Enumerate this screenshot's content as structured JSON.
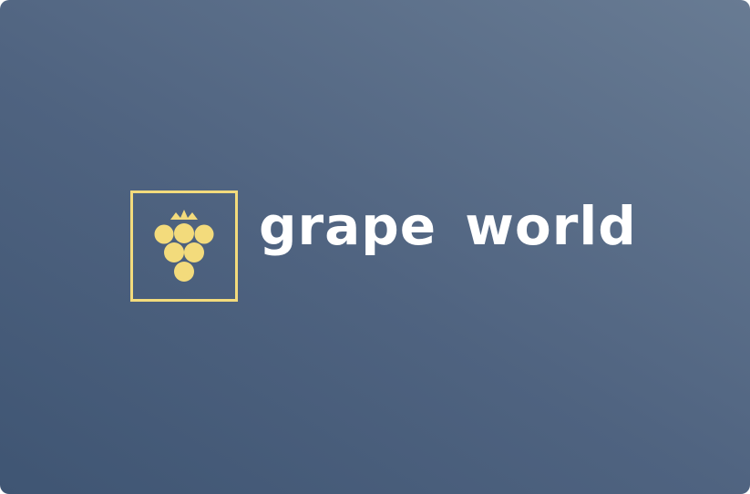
{
  "logo": {
    "icon": "grape-bunch-icon",
    "wordmark": "grape world",
    "colors": {
      "accent": "#f3db7c",
      "text": "#ffffff",
      "background_start": "#3f5573",
      "background_end": "#687b93"
    }
  }
}
